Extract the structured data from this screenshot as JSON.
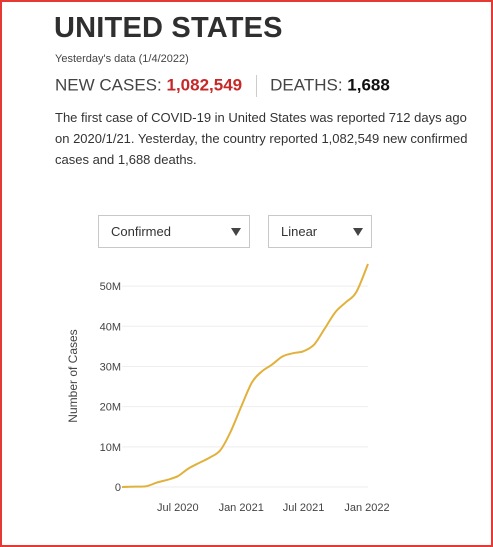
{
  "header": {
    "title": "UNITED STATES",
    "date_line": "Yesterday's data (1/4/2022)",
    "cases_label": "NEW CASES:",
    "cases_value": "1,082,549",
    "deaths_label": "DEATHS:",
    "deaths_value": "1,688"
  },
  "description": "The first case of COVID-19 in United States was reported 712 days ago on 2020/1/21. Yesterday, the country reported 1,082,549 new confirmed cases and 1,688 deaths.",
  "controls": {
    "metric_select": "Confirmed",
    "scale_select": "Linear"
  },
  "colors": {
    "accent": "#c62828",
    "line": "#e2b13c",
    "grid": "#eeeeee",
    "frame": "#e53935"
  },
  "chart_data": {
    "type": "line",
    "title": "",
    "xlabel": "",
    "ylabel": "Number of Cases",
    "x_ticks": [
      "Jul 2020",
      "Jan 2021",
      "Jul 2021",
      "Jan 2022"
    ],
    "y_ticks": [
      "0",
      "10M",
      "20M",
      "30M",
      "40M",
      "50M"
    ],
    "ylim": [
      0,
      55
    ],
    "y_unit": "millions",
    "grid": true,
    "series": [
      {
        "x": [
          "2020-01-21",
          "2020-03-01",
          "2020-04-01",
          "2020-05-01",
          "2020-06-01",
          "2020-07-01",
          "2020-08-01",
          "2020-09-01",
          "2020-10-01",
          "2020-11-01",
          "2020-12-01",
          "2021-01-01",
          "2021-02-01",
          "2021-03-01",
          "2021-04-01",
          "2021-05-01",
          "2021-06-01",
          "2021-07-01",
          "2021-08-01",
          "2021-09-01",
          "2021-10-01",
          "2021-11-01",
          "2021-12-01",
          "2022-01-04"
        ],
        "y": [
          0,
          0.1,
          0.2,
          1.1,
          1.8,
          2.7,
          4.6,
          6.0,
          7.3,
          9.1,
          13.7,
          20.0,
          26.0,
          28.7,
          30.5,
          32.5,
          33.3,
          33.8,
          35.5,
          39.5,
          43.5,
          46.0,
          48.5,
          55.5
        ]
      }
    ]
  }
}
